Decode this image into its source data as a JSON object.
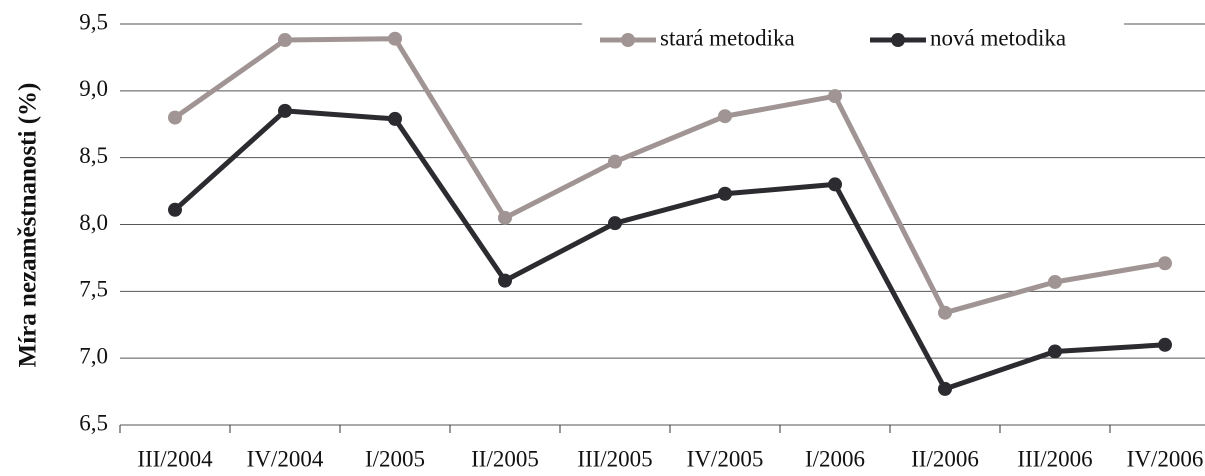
{
  "chart_data": {
    "type": "line",
    "ylabel": "Míra nezaměstnanosti (%)",
    "categories": [
      "III/2004",
      "IV/2004",
      "I/2005",
      "II/2005",
      "III/2005",
      "IV/2005",
      "I/2006",
      "II/2006",
      "III/2006",
      "IV/2006"
    ],
    "series": [
      {
        "name": "stará metodika",
        "color": "#a09594",
        "values": [
          8.8,
          9.38,
          9.39,
          8.05,
          8.47,
          8.81,
          8.96,
          7.34,
          7.57,
          7.71
        ]
      },
      {
        "name": "nová metodika",
        "color": "#2b2b30",
        "values": [
          8.11,
          8.85,
          8.79,
          7.58,
          8.01,
          8.23,
          8.3,
          6.77,
          7.05,
          7.1
        ]
      }
    ],
    "ylim": [
      6.5,
      9.5
    ],
    "yticks": [
      {
        "value": 6.5,
        "label": "6,5"
      },
      {
        "value": 7.0,
        "label": "7,0"
      },
      {
        "value": 7.5,
        "label": "7,5"
      },
      {
        "value": 8.0,
        "label": "8,0"
      },
      {
        "value": 8.5,
        "label": "8,5"
      },
      {
        "value": 9.0,
        "label": "9,0"
      },
      {
        "value": 9.5,
        "label": "9,5"
      }
    ],
    "grid": true,
    "legend": "top"
  }
}
